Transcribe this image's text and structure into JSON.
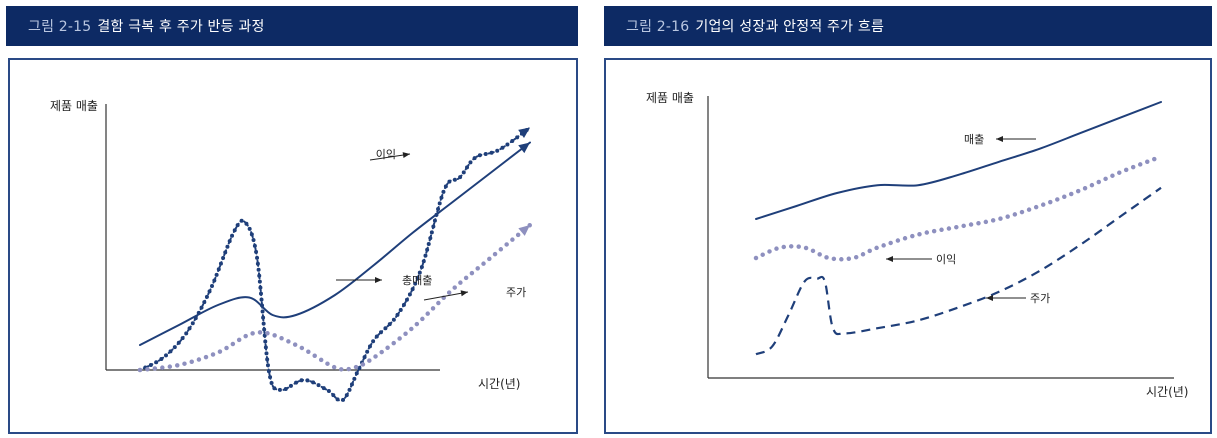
{
  "colors": {
    "title_bar": "#0d2a64",
    "line": "#1f3f7a",
    "dotted": "#8e90bf",
    "frame": "#2a4a86"
  },
  "figures": [
    {
      "number": "그림 2-15",
      "title": "결함 극복 후 주가 반등 과정"
    },
    {
      "number": "그림 2-16",
      "title": "기업의 성장과 안정적 주가 흐름"
    }
  ],
  "chart_data": [
    {
      "type": "line",
      "title": "그림 2-15 결함 극복 후 주가 반등 과정",
      "ylabel": "제품 매출",
      "xlabel": "시간(년)",
      "series": [
        {
          "name": "총매출",
          "style": "solid",
          "x": [
            0,
            10,
            20,
            28,
            34,
            40,
            50,
            60,
            70,
            80,
            90,
            100
          ],
          "y": [
            10,
            18,
            26,
            29,
            22,
            22,
            30,
            42,
            55,
            67,
            79,
            91
          ]
        },
        {
          "name": "주가",
          "style": "dotted-line",
          "x": [
            0,
            6,
            12,
            18,
            24,
            27,
            30,
            33,
            36,
            42,
            48,
            52,
            56,
            60,
            66,
            72,
            78,
            82,
            86,
            92,
            100
          ],
          "y": [
            0,
            5,
            15,
            32,
            55,
            59,
            45,
            0,
            -8,
            -4,
            -8,
            -12,
            0,
            12,
            22,
            40,
            72,
            77,
            85,
            88,
            97
          ]
        },
        {
          "name": "이익",
          "style": "dotted",
          "x": [
            0,
            10,
            20,
            30,
            40,
            50,
            55,
            60,
            70,
            80,
            90,
            100
          ],
          "y": [
            0,
            2,
            7,
            15,
            10,
            1,
            1,
            5,
            17,
            32,
            45,
            58
          ]
        }
      ]
    },
    {
      "type": "line",
      "title": "그림 2-16 기업의 성장과 안정적 주가 흐름",
      "ylabel": "제품 매출",
      "xlabel": "시간(년)",
      "series": [
        {
          "name": "매출",
          "style": "solid",
          "x": [
            0,
            10,
            20,
            30,
            40,
            50,
            60,
            70,
            80,
            90,
            100
          ],
          "y": [
            55,
            60,
            65,
            68,
            68,
            72,
            77,
            82,
            88,
            94,
            100
          ]
        },
        {
          "name": "이익",
          "style": "dotted",
          "x": [
            0,
            6,
            12,
            18,
            24,
            30,
            40,
            50,
            60,
            70,
            80,
            90,
            100
          ],
          "y": [
            40,
            44,
            44,
            40,
            40,
            44,
            49,
            52,
            55,
            60,
            66,
            73,
            79
          ]
        },
        {
          "name": "주가",
          "style": "dashed",
          "x": [
            0,
            4,
            8,
            12,
            15,
            17,
            19,
            22,
            30,
            40,
            50,
            60,
            70,
            80,
            90,
            100
          ],
          "y": [
            3,
            6,
            18,
            31,
            32,
            31,
            13,
            11,
            13,
            16,
            21,
            27,
            35,
            45,
            56,
            67
          ]
        }
      ]
    }
  ]
}
